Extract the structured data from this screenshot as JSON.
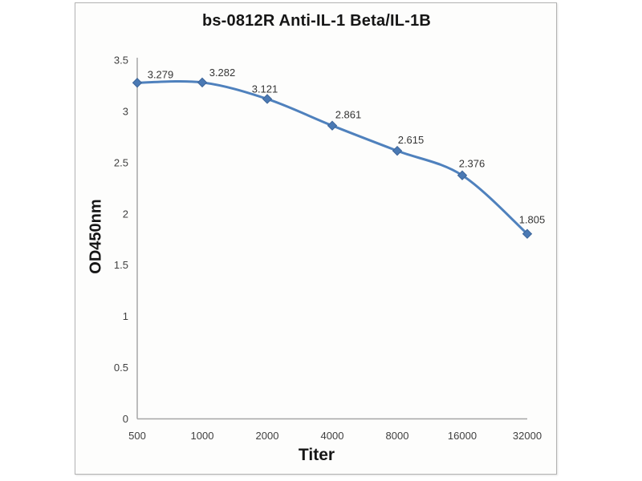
{
  "chart_data": {
    "type": "line",
    "title": "bs-0812R Anti-IL-1 Beta/IL-1B",
    "xlabel": "Titer",
    "ylabel": "OD450nm",
    "categories": [
      "500",
      "1000",
      "2000",
      "4000",
      "8000",
      "16000",
      "32000"
    ],
    "series": [
      {
        "name": "bs-0812R Anti-IL-1 Beta/IL-1B",
        "values": [
          3.279,
          3.282,
          3.121,
          2.861,
          2.615,
          2.376,
          1.805
        ]
      }
    ],
    "data_labels": [
      "3.279",
      "3.282",
      "3.121",
      "2.861",
      "2.615",
      "2.376",
      "1.805"
    ],
    "y_ticks": [
      "0",
      "0.5",
      "1",
      "1.5",
      "2",
      "2.5",
      "3",
      "3.5"
    ],
    "ylim": [
      0,
      3.5
    ],
    "x_axis_scale_note": "titer doubles each step (category axis)",
    "grid": false,
    "legend_position": "none",
    "line_smoothing": true,
    "marker_shape": "diamond",
    "colors": {
      "line": "#4f81bd",
      "marker_fill": "#4a79b4",
      "marker_stroke": "#3d6599",
      "axis_line": "#a6a6a6",
      "tick_label": "#3f3f3f",
      "data_label": "#353535",
      "title_text": "#161616",
      "panel_border": "#b3b3b3",
      "panel_background": "#fdfdfc"
    }
  }
}
